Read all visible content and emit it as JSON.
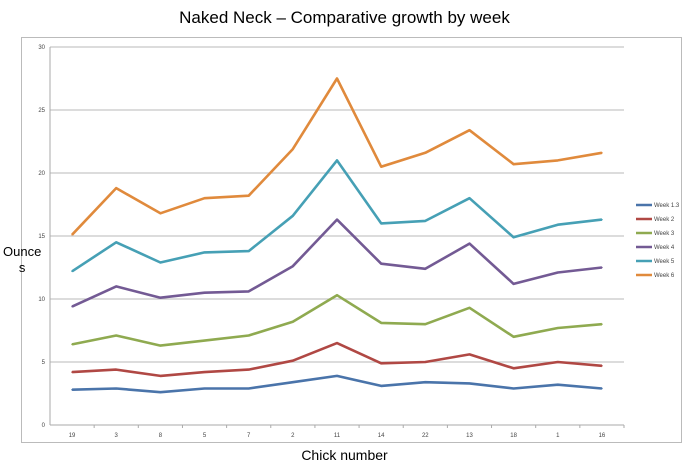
{
  "chart_data": {
    "type": "line",
    "title": "Naked Neck – Comparative growth by week",
    "xlabel": "Chick number",
    "ylabel": "Ounces",
    "ylabel_lines": [
      "Ounce",
      "s"
    ],
    "categories": [
      "19",
      "3",
      "8",
      "5",
      "7",
      "2",
      "11",
      "14",
      "22",
      "13",
      "18",
      "1",
      "16"
    ],
    "ylim": [
      0,
      30
    ],
    "yticks": [
      0,
      5,
      10,
      15,
      20,
      25,
      30
    ],
    "grid": true,
    "legend_position": "right",
    "series": [
      {
        "name": "Week 1.3",
        "color": "#4a74aa",
        "values": [
          2.8,
          2.9,
          2.6,
          2.9,
          2.9,
          3.4,
          3.9,
          3.1,
          3.4,
          3.3,
          2.9,
          3.2,
          2.9
        ]
      },
      {
        "name": "Week 2",
        "color": "#b04844",
        "values": [
          4.2,
          4.4,
          3.9,
          4.2,
          4.4,
          5.1,
          6.5,
          4.9,
          5.0,
          5.6,
          4.5,
          5.0,
          4.7
        ]
      },
      {
        "name": "Week 3",
        "color": "#8faa50",
        "values": [
          6.4,
          7.1,
          6.3,
          6.7,
          7.1,
          8.2,
          10.3,
          8.1,
          8.0,
          9.3,
          7.0,
          7.7,
          8.0
        ]
      },
      {
        "name": "Week 4",
        "color": "#735a94",
        "values": [
          9.4,
          11.0,
          10.1,
          10.5,
          10.6,
          12.6,
          16.3,
          12.8,
          12.4,
          14.4,
          11.2,
          12.1,
          12.5
        ]
      },
      {
        "name": "Week 5",
        "color": "#46a0b5",
        "values": [
          12.2,
          14.5,
          12.9,
          13.7,
          13.8,
          16.6,
          21.0,
          16.0,
          16.2,
          18.0,
          14.9,
          15.9,
          16.3
        ]
      },
      {
        "name": "Week 6",
        "color": "#e08a3c",
        "values": [
          15.1,
          18.8,
          16.8,
          18.0,
          18.2,
          21.9,
          27.5,
          20.5,
          21.6,
          23.4,
          20.7,
          21.0,
          21.6
        ]
      }
    ]
  }
}
